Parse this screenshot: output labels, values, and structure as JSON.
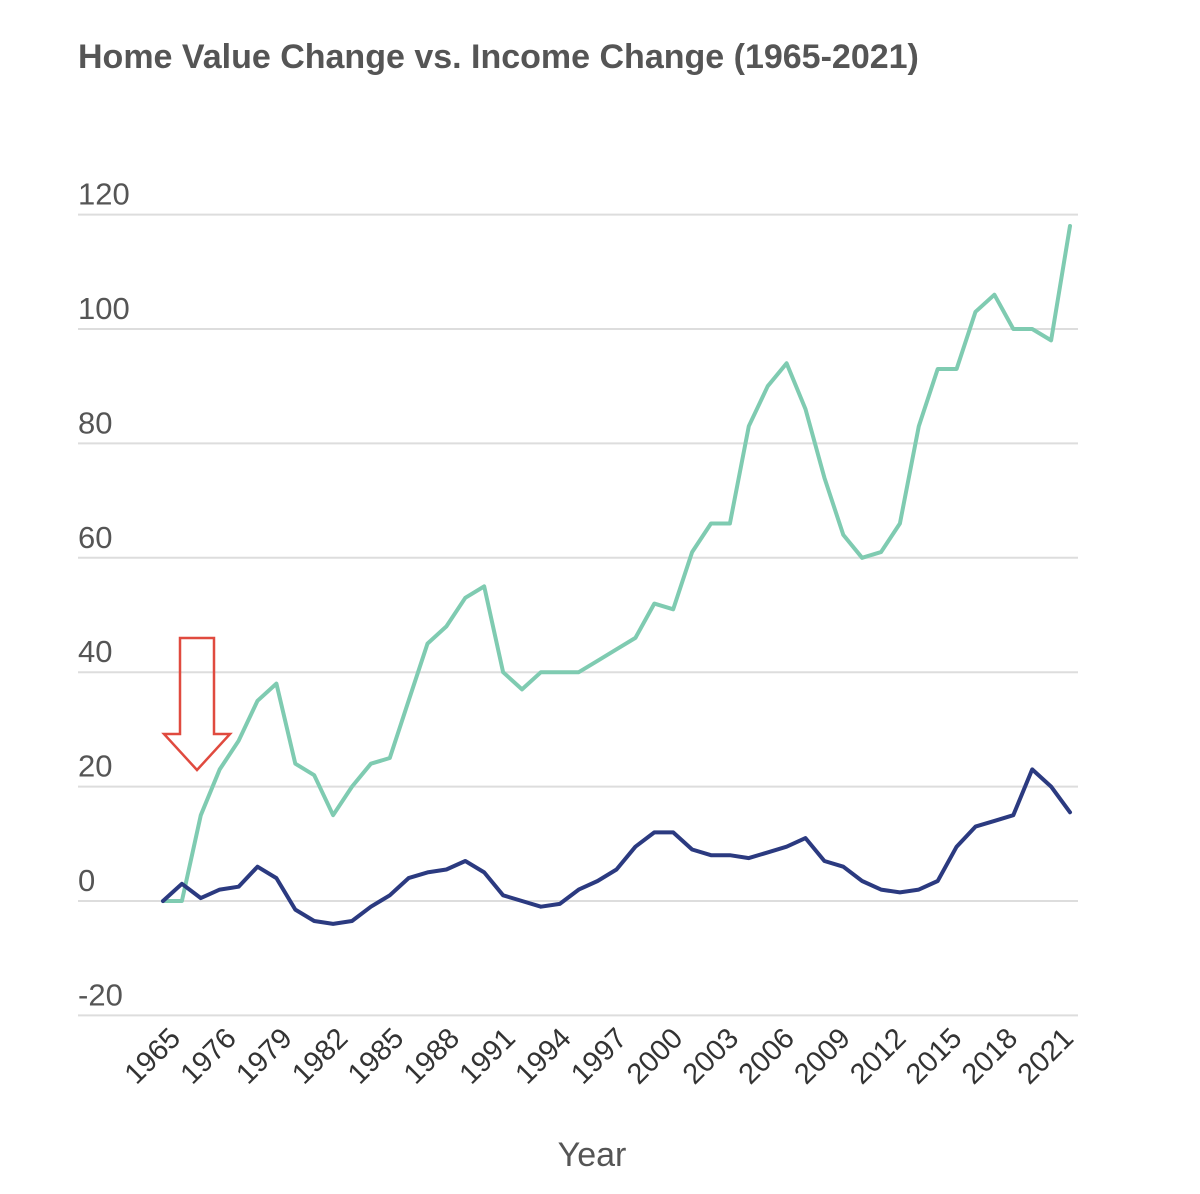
{
  "chart_data": {
    "type": "line",
    "title": "Home Value Change vs. Income Change (1965-2021)",
    "xlabel": "Year",
    "ylabel": "",
    "ylim": [
      -20,
      120
    ],
    "yticks": [
      120,
      100,
      80,
      60,
      40,
      20,
      0,
      -20
    ],
    "grid": true,
    "x": [
      "1965",
      "1974",
      "1975",
      "1976",
      "1977",
      "1978",
      "1979",
      "1980",
      "1981",
      "1982",
      "1983",
      "1984",
      "1985",
      "1986",
      "1987",
      "1988",
      "1989",
      "1990",
      "1991",
      "1992",
      "1993",
      "1994",
      "1995",
      "1996",
      "1997",
      "1998",
      "1999",
      "2000",
      "2001",
      "2002",
      "2003",
      "2004",
      "2005",
      "2006",
      "2007",
      "2008",
      "2009",
      "2010",
      "2011",
      "2012",
      "2013",
      "2014",
      "2015",
      "2016",
      "2017",
      "2018",
      "2019",
      "2020",
      "2021"
    ],
    "x_tick_labels": [
      "1965",
      "1976",
      "1979",
      "1982",
      "1985",
      "1988",
      "1991",
      "1994",
      "1997",
      "2000",
      "2003",
      "2006",
      "2009",
      "2012",
      "2015",
      "2018",
      "2021"
    ],
    "series": [
      {
        "color": "#7fcbb1",
        "values": [
          0,
          0,
          15,
          23,
          28,
          35,
          38,
          24,
          22,
          15,
          20,
          24,
          25,
          35,
          45,
          48,
          53,
          55,
          40,
          37,
          40,
          40,
          40,
          42,
          44,
          46,
          52,
          51,
          61,
          66,
          66,
          83,
          90,
          94,
          86,
          74,
          64,
          60,
          61,
          66,
          83,
          93,
          93,
          103,
          106,
          100,
          100,
          98,
          118
        ]
      },
      {
        "color": "#2b3a80",
        "values": [
          0,
          3,
          0.5,
          2,
          2.5,
          6,
          4,
          -1.5,
          -3.5,
          -4,
          -3.5,
          -1,
          1,
          4,
          5,
          5.5,
          7,
          5,
          1,
          0,
          -1,
          -0.5,
          2,
          3.5,
          5.5,
          9.5,
          12,
          12,
          9,
          8,
          8,
          7.5,
          8.5,
          9.5,
          11,
          7,
          6,
          3.5,
          2,
          1.5,
          2,
          3.5,
          9.5,
          13,
          14,
          15,
          23,
          20,
          15.5
        ]
      }
    ],
    "annotation": {
      "type": "arrow",
      "direction": "down",
      "color": "#e04a3f"
    }
  }
}
